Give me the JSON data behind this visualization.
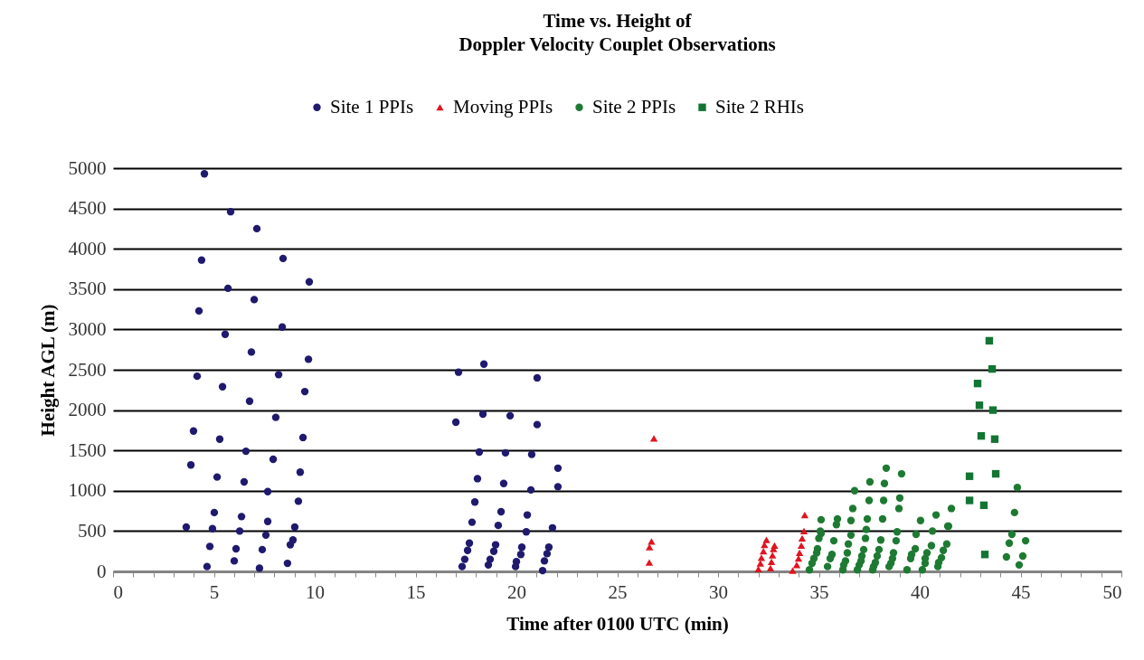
{
  "chart_data": {
    "type": "scatter",
    "title": "Time vs. Height of\nDoppler Velocity Couplet Observations",
    "xlabel": "Time after 0100 UTC (min)",
    "ylabel": "Height AGL (m)",
    "xlim": [
      0,
      50
    ],
    "ylim": [
      0,
      5000
    ],
    "xticks": [
      0,
      {
        "value": 1,
        "label": null
      },
      {
        "value": 2,
        "label": null
      },
      {
        "value": 3,
        "label": null
      },
      {
        "value": 4,
        "label": null
      },
      5,
      {
        "value": 6,
        "label": null
      },
      {
        "value": 7,
        "label": null
      },
      {
        "value": 8,
        "label": null
      },
      {
        "value": 9,
        "label": null
      },
      10,
      {
        "value": 11,
        "label": null
      },
      {
        "value": 12,
        "label": null
      },
      {
        "value": 13,
        "label": null
      },
      {
        "value": 14,
        "label": null
      },
      15,
      {
        "value": 16,
        "label": null
      },
      {
        "value": 17,
        "label": null
      },
      {
        "value": 18,
        "label": null
      },
      {
        "value": 19,
        "label": null
      },
      20,
      {
        "value": 21,
        "label": null
      },
      {
        "value": 22,
        "label": null
      },
      {
        "value": 23,
        "label": null
      },
      {
        "value": 24,
        "label": null
      },
      25,
      {
        "value": 26,
        "label": null
      },
      {
        "value": 27,
        "label": null
      },
      {
        "value": 28,
        "label": null
      },
      {
        "value": 29,
        "label": null
      },
      30,
      {
        "value": 31,
        "label": null
      },
      {
        "value": 32,
        "label": null
      },
      {
        "value": 33,
        "label": null
      },
      {
        "value": 34,
        "label": null
      },
      35,
      {
        "value": 36,
        "label": null
      },
      {
        "value": 37,
        "label": null
      },
      {
        "value": 38,
        "label": null
      },
      {
        "value": 39,
        "label": null
      },
      40,
      {
        "value": 41,
        "label": null
      },
      {
        "value": 42,
        "label": null
      },
      {
        "value": 43,
        "label": null
      },
      {
        "value": 44,
        "label": null
      },
      45,
      {
        "value": 46,
        "label": null
      },
      {
        "value": 47,
        "label": null
      },
      {
        "value": 48,
        "label": null
      },
      {
        "value": 49,
        "label": null
      },
      50
    ],
    "yticks": [
      0,
      500,
      1000,
      1500,
      2000,
      2500,
      3000,
      3500,
      4000,
      4500,
      5000
    ],
    "grid": "y",
    "legend": "top",
    "series": [
      {
        "name": "Site 1 PPIs",
        "color": "#1f1a6e",
        "marker": "circle",
        "x": [
          4.53,
          5.83,
          7.13,
          4.39,
          8.43,
          9.73,
          5.7,
          7.0,
          4.26,
          8.39,
          5.56,
          6.86,
          9.69,
          4.17,
          8.21,
          5.43,
          6.77,
          9.51,
          8.07,
          3.99,
          5.29,
          6.59,
          9.42,
          7.94,
          3.86,
          5.16,
          6.5,
          7.67,
          9.28,
          9.19,
          5.02,
          6.37,
          7.67,
          3.63,
          4.93,
          6.28,
          7.58,
          9.01,
          4.8,
          6.1,
          7.4,
          8.79,
          8.92,
          4.66,
          6.01,
          7.26,
          8.65,
          17.13,
          18.39,
          21.03,
          17.0,
          18.34,
          19.69,
          21.03,
          18.16,
          19.46,
          20.76,
          22.06,
          18.07,
          19.37,
          20.72,
          22.06,
          17.94,
          19.24,
          20.54,
          17.8,
          19.1,
          20.49,
          21.79,
          17.67,
          17.58,
          17.44,
          17.31,
          18.97,
          18.88,
          18.7,
          18.61,
          20.27,
          20.22,
          20.0,
          19.96,
          21.61,
          21.52,
          21.39,
          21.3
        ],
        "values": [
          4930,
          4460,
          4250,
          3860,
          3880,
          3590,
          3510,
          3370,
          3230,
          3030,
          2940,
          2720,
          2630,
          2420,
          2440,
          2290,
          2110,
          2230,
          1910,
          1740,
          1640,
          1490,
          1660,
          1390,
          1320,
          1170,
          1110,
          990,
          1230,
          870,
          730,
          680,
          620,
          550,
          530,
          500,
          450,
          550,
          310,
          280,
          270,
          330,
          390,
          60,
          130,
          40,
          100,
          2470,
          2570,
          2400,
          1850,
          1950,
          1930,
          1820,
          1480,
          1470,
          1450,
          1280,
          1150,
          1090,
          1010,
          1050,
          860,
          740,
          700,
          610,
          570,
          490,
          540,
          350,
          260,
          150,
          60,
          330,
          250,
          150,
          80,
          300,
          210,
          120,
          60,
          300,
          220,
          130,
          10
        ]
      },
      {
        "name": "Moving PPIs",
        "color": "#e0141e",
        "marker": "triangle",
        "x": [
          26.82,
          26.7,
          26.6,
          26.59,
          32.0,
          32.1,
          32.15,
          32.25,
          32.3,
          32.4,
          32.6,
          32.65,
          32.7,
          32.75,
          32.8,
          34.3,
          34.26,
          34.17,
          34.13,
          34.04,
          33.99,
          33.9,
          33.7
        ],
        "values": [
          1650,
          370,
          300,
          110,
          30,
          100,
          170,
          250,
          330,
          390,
          40,
          120,
          200,
          280,
          320,
          700,
          500,
          410,
          320,
          230,
          160,
          80,
          10
        ]
      },
      {
        "name": "Site 2 PPIs",
        "color": "#1e7a32",
        "marker": "circle",
        "x": [
          38.34,
          39.1,
          37.53,
          38.25,
          36.77,
          37.49,
          38.21,
          39.01,
          38.97,
          36.68,
          41.57,
          35.11,
          35.92,
          35.87,
          36.59,
          37.4,
          38.16,
          40.04,
          40.81,
          41.39,
          37.35,
          36.59,
          37.31,
          35.11,
          35.0,
          38.88,
          38.07,
          39.82,
          40.63,
          35.74,
          38.83,
          40.58,
          41.34,
          34.93,
          36.46,
          37.22,
          37.98,
          38.7,
          39.78,
          40.36,
          41.17,
          34.89,
          35.65,
          36.41,
          37.13,
          37.89,
          38.65,
          39.6,
          40.27,
          41.08,
          34.75,
          35.56,
          36.32,
          37.09,
          37.8,
          38.57,
          39.55,
          40.27,
          40.94,
          34.66,
          35.43,
          36.23,
          37.0,
          37.71,
          38.48,
          39.37,
          40.13,
          40.9,
          34.53,
          36.19,
          36.91,
          37.67,
          35.07,
          44.84,
          44.7,
          41.43,
          44.57,
          45.25,
          44.44,
          44.3,
          45.11,
          44.93
        ],
        "values": [
          1280,
          1210,
          1110,
          1090,
          1000,
          880,
          880,
          910,
          780,
          780,
          780,
          640,
          650,
          580,
          630,
          650,
          650,
          630,
          700,
          560,
          520,
          450,
          410,
          470,
          410,
          490,
          390,
          460,
          500,
          380,
          380,
          320,
          340,
          280,
          340,
          270,
          270,
          230,
          280,
          230,
          260,
          230,
          210,
          230,
          190,
          190,
          160,
          210,
          160,
          170,
          160,
          160,
          130,
          130,
          110,
          100,
          160,
          100,
          110,
          100,
          60,
          80,
          80,
          60,
          60,
          20,
          20,
          60,
          20,
          20,
          20,
          20,
          500,
          1040,
          730,
          560,
          460,
          380,
          350,
          180,
          190,
          80
        ]
      },
      {
        "name": "Site 2 RHIs",
        "color": "#137533",
        "marker": "square",
        "x": [
          43.45,
          43.59,
          42.87,
          42.96,
          43.63,
          43.05,
          43.72,
          42.47,
          43.77,
          42.47,
          43.18,
          43.23
        ],
        "values": [
          2860,
          2510,
          2330,
          2060,
          2000,
          1680,
          1640,
          1180,
          1210,
          880,
          820,
          210
        ]
      }
    ]
  }
}
